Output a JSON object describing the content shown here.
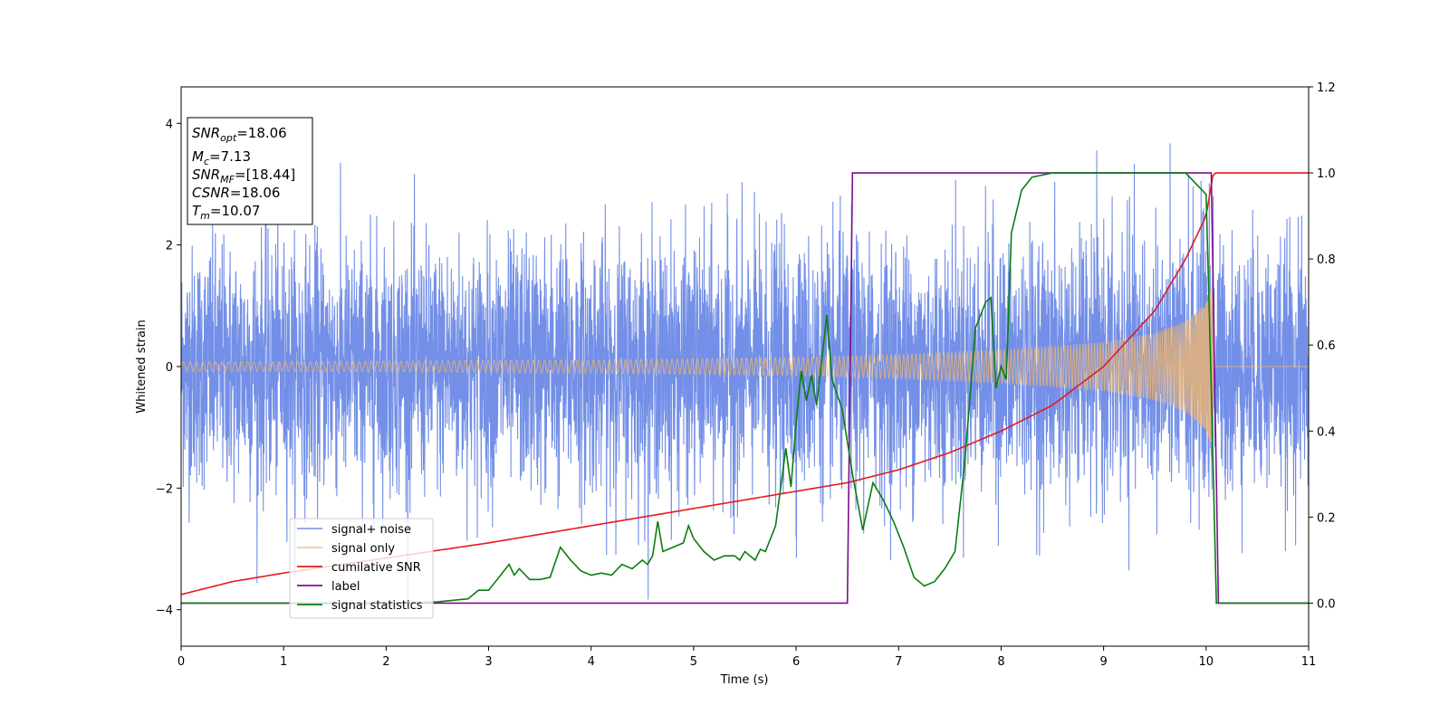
{
  "chart_data": {
    "type": "line",
    "title": "",
    "xlabel": "Time (s)",
    "ylabel": "Whitened strain",
    "xlim": [
      0,
      11
    ],
    "ylim": [
      -4.6,
      4.6
    ],
    "y2lim": [
      -0.1,
      1.2
    ],
    "xticks": [
      "0",
      "1",
      "2",
      "3",
      "4",
      "5",
      "6",
      "7",
      "8",
      "9",
      "10",
      "11"
    ],
    "yticks": [
      "−4",
      "−2",
      "0",
      "2",
      "4"
    ],
    "y2ticks": [
      "0.0",
      "0.2",
      "0.4",
      "0.6",
      "0.8",
      "1.0",
      "1.2"
    ],
    "grid": false,
    "legend_position": "lower-left",
    "annotation": {
      "snr_opt": {
        "name": "SNR",
        "sub": "opt",
        "value": "=18.06"
      },
      "mc": {
        "name": "M",
        "sub": "c",
        "value": "=7.13"
      },
      "snr_mf": {
        "name": "SNR",
        "sub": "MF",
        "value": "=[18.44]"
      },
      "csnr": {
        "name": "CSNR",
        "value": "=18.06"
      },
      "tm": {
        "name": "T",
        "sub": "m",
        "value": "=10.07"
      }
    },
    "series": [
      {
        "name": "signal+ noise",
        "axis": "left",
        "color": "#5b7be3",
        "description_bounds": {
          "typical_amplitude": 1.0,
          "peak_range": [
            -4.15,
            4.2
          ]
        },
        "points": [
          [
            0,
            -2.6
          ],
          [
            1.2,
            -4.1
          ],
          [
            3.05,
            3.3
          ],
          [
            6.0,
            -4.15
          ],
          [
            6.9,
            3.9
          ],
          [
            8.2,
            -3.7
          ],
          [
            10.1,
            4.18
          ],
          [
            10.15,
            -3.9
          ],
          [
            11,
            -3.6
          ]
        ]
      },
      {
        "name": "signal only",
        "axis": "left",
        "color": "#f5b86a",
        "envelope": [
          [
            0,
            0.08
          ],
          [
            1,
            0.08
          ],
          [
            2,
            0.09
          ],
          [
            3,
            0.1
          ],
          [
            4,
            0.11
          ],
          [
            5,
            0.13
          ],
          [
            6,
            0.15
          ],
          [
            7,
            0.2
          ],
          [
            8,
            0.27
          ],
          [
            9,
            0.4
          ],
          [
            9.5,
            0.55
          ],
          [
            9.8,
            0.75
          ],
          [
            10.0,
            1.05
          ],
          [
            10.07,
            1.4
          ]
        ],
        "after_merger": 0.0
      },
      {
        "name": "cumilative SNR",
        "axis": "right",
        "color": "#e31a1c",
        "points": [
          [
            0,
            0.02
          ],
          [
            0.5,
            0.05
          ],
          [
            1,
            0.07
          ],
          [
            2,
            0.105
          ],
          [
            3,
            0.14
          ],
          [
            4,
            0.18
          ],
          [
            5,
            0.22
          ],
          [
            6,
            0.26
          ],
          [
            6.5,
            0.28
          ],
          [
            7,
            0.31
          ],
          [
            7.5,
            0.35
          ],
          [
            8,
            0.4
          ],
          [
            8.5,
            0.46
          ],
          [
            9,
            0.55
          ],
          [
            9.5,
            0.68
          ],
          [
            9.8,
            0.8
          ],
          [
            10.0,
            0.9
          ],
          [
            10.07,
            1.0
          ],
          [
            11,
            1.0
          ]
        ]
      },
      {
        "name": "label",
        "axis": "right",
        "color": "#7b0f8f",
        "points": [
          [
            0,
            0
          ],
          [
            6.5,
            0
          ],
          [
            6.55,
            1.0
          ],
          [
            10.05,
            1.0
          ],
          [
            10.12,
            0.0
          ],
          [
            11,
            0.0
          ]
        ]
      },
      {
        "name": "signal statistics",
        "axis": "right",
        "color": "#0a7d10",
        "points": [
          [
            0,
            0
          ],
          [
            0.5,
            0.0
          ],
          [
            1,
            0.0
          ],
          [
            2,
            0.0
          ],
          [
            2.5,
            0.003
          ],
          [
            2.8,
            0.01
          ],
          [
            2.9,
            0.03
          ],
          [
            3.0,
            0.03
          ],
          [
            3.1,
            0.06
          ],
          [
            3.2,
            0.09
          ],
          [
            3.25,
            0.065
          ],
          [
            3.3,
            0.08
          ],
          [
            3.4,
            0.055
          ],
          [
            3.5,
            0.055
          ],
          [
            3.6,
            0.06
          ],
          [
            3.7,
            0.13
          ],
          [
            3.8,
            0.1
          ],
          [
            3.9,
            0.075
          ],
          [
            4.0,
            0.065
          ],
          [
            4.1,
            0.07
          ],
          [
            4.2,
            0.065
          ],
          [
            4.3,
            0.09
          ],
          [
            4.4,
            0.08
          ],
          [
            4.5,
            0.1
          ],
          [
            4.55,
            0.09
          ],
          [
            4.6,
            0.11
          ],
          [
            4.65,
            0.19
          ],
          [
            4.7,
            0.12
          ],
          [
            4.8,
            0.13
          ],
          [
            4.9,
            0.14
          ],
          [
            4.95,
            0.18
          ],
          [
            5.0,
            0.15
          ],
          [
            5.1,
            0.12
          ],
          [
            5.2,
            0.1
          ],
          [
            5.3,
            0.11
          ],
          [
            5.4,
            0.11
          ],
          [
            5.45,
            0.1
          ],
          [
            5.5,
            0.12
          ],
          [
            5.6,
            0.1
          ],
          [
            5.65,
            0.125
          ],
          [
            5.7,
            0.12
          ],
          [
            5.8,
            0.18
          ],
          [
            5.9,
            0.36
          ],
          [
            5.95,
            0.27
          ],
          [
            6.0,
            0.42
          ],
          [
            6.05,
            0.54
          ],
          [
            6.1,
            0.47
          ],
          [
            6.15,
            0.53
          ],
          [
            6.2,
            0.46
          ],
          [
            6.3,
            0.67
          ],
          [
            6.35,
            0.52
          ],
          [
            6.45,
            0.45
          ],
          [
            6.55,
            0.3
          ],
          [
            6.65,
            0.17
          ],
          [
            6.75,
            0.28
          ],
          [
            6.85,
            0.24
          ],
          [
            6.95,
            0.19
          ],
          [
            7.05,
            0.13
          ],
          [
            7.15,
            0.06
          ],
          [
            7.25,
            0.04
          ],
          [
            7.35,
            0.05
          ],
          [
            7.45,
            0.08
          ],
          [
            7.55,
            0.12
          ],
          [
            7.65,
            0.34
          ],
          [
            7.75,
            0.64
          ],
          [
            7.85,
            0.7
          ],
          [
            7.9,
            0.71
          ],
          [
            7.95,
            0.5
          ],
          [
            8.0,
            0.55
          ],
          [
            8.05,
            0.52
          ],
          [
            8.1,
            0.86
          ],
          [
            8.2,
            0.96
          ],
          [
            8.3,
            0.99
          ],
          [
            8.5,
            1.0
          ],
          [
            9.0,
            1.0
          ],
          [
            9.5,
            1.0
          ],
          [
            9.8,
            1.0
          ],
          [
            10.0,
            0.95
          ],
          [
            10.05,
            0.5
          ],
          [
            10.1,
            0.0
          ],
          [
            11,
            0.0
          ]
        ]
      }
    ]
  }
}
